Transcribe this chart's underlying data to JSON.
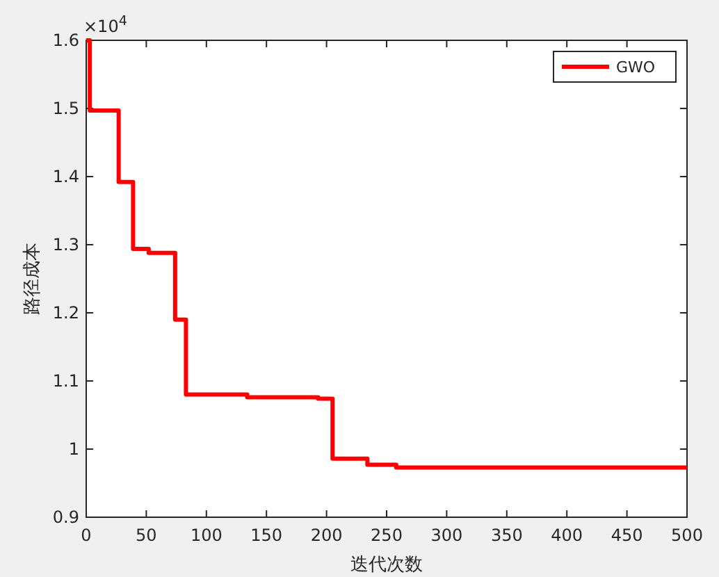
{
  "chart_data": {
    "type": "step",
    "xlabel": "迭代次数",
    "ylabel": "路径成本",
    "annotations": [
      "×10$^{4}$"
    ],
    "series": [
      {
        "name": "GWO",
        "color": "#ff0000",
        "x": [
          0,
          3,
          27,
          39,
          52,
          74,
          83,
          134,
          193,
          205,
          234,
          258,
          500
        ],
        "values": [
          1.6,
          1.497,
          1.392,
          1.294,
          1.288,
          1.19,
          1.08,
          1.076,
          1.074,
          0.986,
          0.977,
          0.973,
          0.973
        ]
      }
    ],
    "xlim": [
      0,
      500
    ],
    "xticks": [
      0,
      50,
      100,
      150,
      200,
      250,
      300,
      350,
      400,
      450,
      500
    ],
    "ylim": [
      0.9,
      1.6
    ],
    "yticks": [
      0.9,
      1,
      1.1,
      1.2,
      1.3,
      1.4,
      1.5,
      1.6
    ],
    "legend": "top right",
    "grid": false,
    "line_style": "solid"
  }
}
